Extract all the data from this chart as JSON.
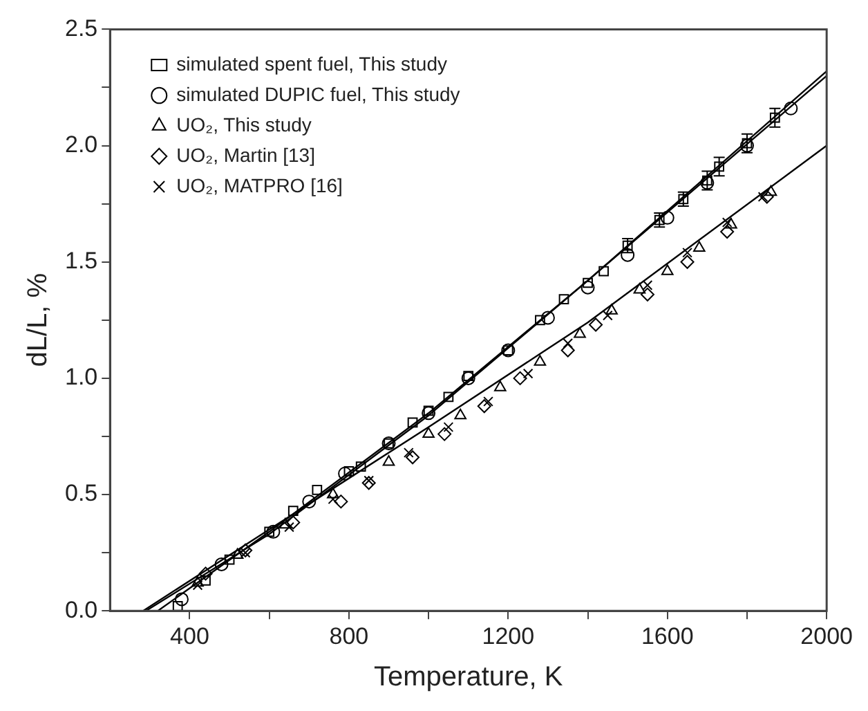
{
  "chart_data": {
    "type": "scatter",
    "xlabel": "Temperature, K",
    "ylabel": "dL/L, %",
    "xlim": [
      200,
      2000
    ],
    "ylim": [
      0,
      2.5
    ],
    "xticks": [
      400,
      {
        "value": 600,
        "label": null
      },
      800,
      {
        "value": 1000,
        "label": null
      },
      1200,
      {
        "value": 1400,
        "label": null
      },
      1600,
      {
        "value": 1800,
        "label": null
      },
      2000
    ],
    "yticks": [
      "0.0",
      {
        "value": 0.25,
        "label": null
      },
      {
        "value": 0.5,
        "label": "0.5"
      },
      {
        "value": 0.75,
        "label": null
      },
      {
        "value": 1,
        "label": "1.0"
      },
      {
        "value": 1.25,
        "label": null
      },
      {
        "value": 1.5,
        "label": "1.5"
      },
      {
        "value": 1.75,
        "label": null
      },
      {
        "value": 2,
        "label": "2.0"
      },
      {
        "value": 2.25,
        "label": null
      },
      {
        "value": 2.5,
        "label": "2.5"
      }
    ],
    "grid": false,
    "legend": "top left",
    "series": [
      {
        "name": "simulated spent fuel, This study",
        "color": "#000000",
        "marker": "square",
        "x": [
          370,
          440,
          500,
          600,
          660,
          720,
          800,
          830,
          900,
          960,
          1000,
          1050,
          1100,
          1200,
          1280,
          1340,
          1400,
          1440,
          1500,
          1580,
          1640,
          1700,
          1730,
          1800,
          1870
        ],
        "values": [
          0.02,
          0.13,
          0.22,
          0.34,
          0.43,
          0.52,
          0.6,
          0.62,
          0.72,
          0.81,
          0.86,
          0.92,
          1.01,
          1.12,
          1.25,
          1.34,
          1.41,
          1.46,
          1.57,
          1.68,
          1.77,
          1.85,
          1.91,
          2.01,
          2.12
        ],
        "errors": [
          null,
          null,
          null,
          null,
          null,
          null,
          null,
          null,
          null,
          null,
          null,
          null,
          null,
          null,
          null,
          null,
          null,
          null,
          0.03,
          0.03,
          0.03,
          0.04,
          0.04,
          0.04,
          0.04
        ]
      },
      {
        "name": "simulated DUPIC fuel, This study",
        "color": "#000000",
        "marker": "circle",
        "x": [
          380,
          480,
          610,
          700,
          790,
          900,
          1000,
          1100,
          1200,
          1300,
          1400,
          1500,
          1600,
          1700,
          1800,
          1910
        ],
        "values": [
          0.05,
          0.2,
          0.34,
          0.47,
          0.59,
          0.72,
          0.85,
          1.0,
          1.12,
          1.26,
          1.39,
          1.53,
          1.69,
          1.84,
          2.0,
          2.16
        ]
      },
      {
        "name": "UO₂, This study",
        "color": "#000000",
        "marker": "triangle",
        "x": [
          420,
          520,
          640,
          760,
          900,
          1000,
          1080,
          1180,
          1280,
          1380,
          1460,
          1530,
          1600,
          1680,
          1760,
          1860
        ],
        "values": [
          0.12,
          0.24,
          0.37,
          0.5,
          0.64,
          0.76,
          0.84,
          0.96,
          1.07,
          1.19,
          1.29,
          1.38,
          1.46,
          1.56,
          1.66,
          1.8
        ]
      },
      {
        "name": "UO₂, Martin [13]",
        "color": "#000000",
        "marker": "diamond",
        "x": [
          440,
          540,
          660,
          780,
          850,
          960,
          1040,
          1140,
          1230,
          1350,
          1420,
          1550,
          1650,
          1750,
          1850
        ],
        "values": [
          0.16,
          0.26,
          0.38,
          0.47,
          0.55,
          0.66,
          0.76,
          0.88,
          1.0,
          1.12,
          1.23,
          1.36,
          1.5,
          1.63,
          1.78
        ]
      },
      {
        "name": "UO₂, MATPRO [16]",
        "color": "#000000",
        "marker": "cross",
        "x": [
          420,
          540,
          650,
          760,
          850,
          950,
          1050,
          1150,
          1250,
          1350,
          1450,
          1550,
          1650,
          1750,
          1840
        ],
        "values": [
          0.11,
          0.25,
          0.36,
          0.48,
          0.56,
          0.68,
          0.79,
          0.9,
          1.02,
          1.15,
          1.27,
          1.4,
          1.54,
          1.67,
          1.78
        ]
      },
      {
        "type": "line",
        "color": "#000000",
        "marker": "none",
        "x": [
          290,
          600,
          1000,
          1400,
          1700,
          2000
        ],
        "values": [
          0,
          0.33,
          0.84,
          1.42,
          1.87,
          2.32
        ]
      },
      {
        "type": "line",
        "color": "#000000",
        "marker": "none",
        "x": [
          320,
          600,
          1000,
          1400,
          1700,
          2000
        ],
        "values": [
          0,
          0.34,
          0.85,
          1.42,
          1.86,
          2.3
        ]
      },
      {
        "type": "line",
        "color": "#000000",
        "marker": "none",
        "x": [
          283,
          600,
          1000,
          1400,
          2000
        ],
        "values": [
          0,
          0.35,
          0.79,
          1.24,
          2.0
        ]
      }
    ]
  }
}
